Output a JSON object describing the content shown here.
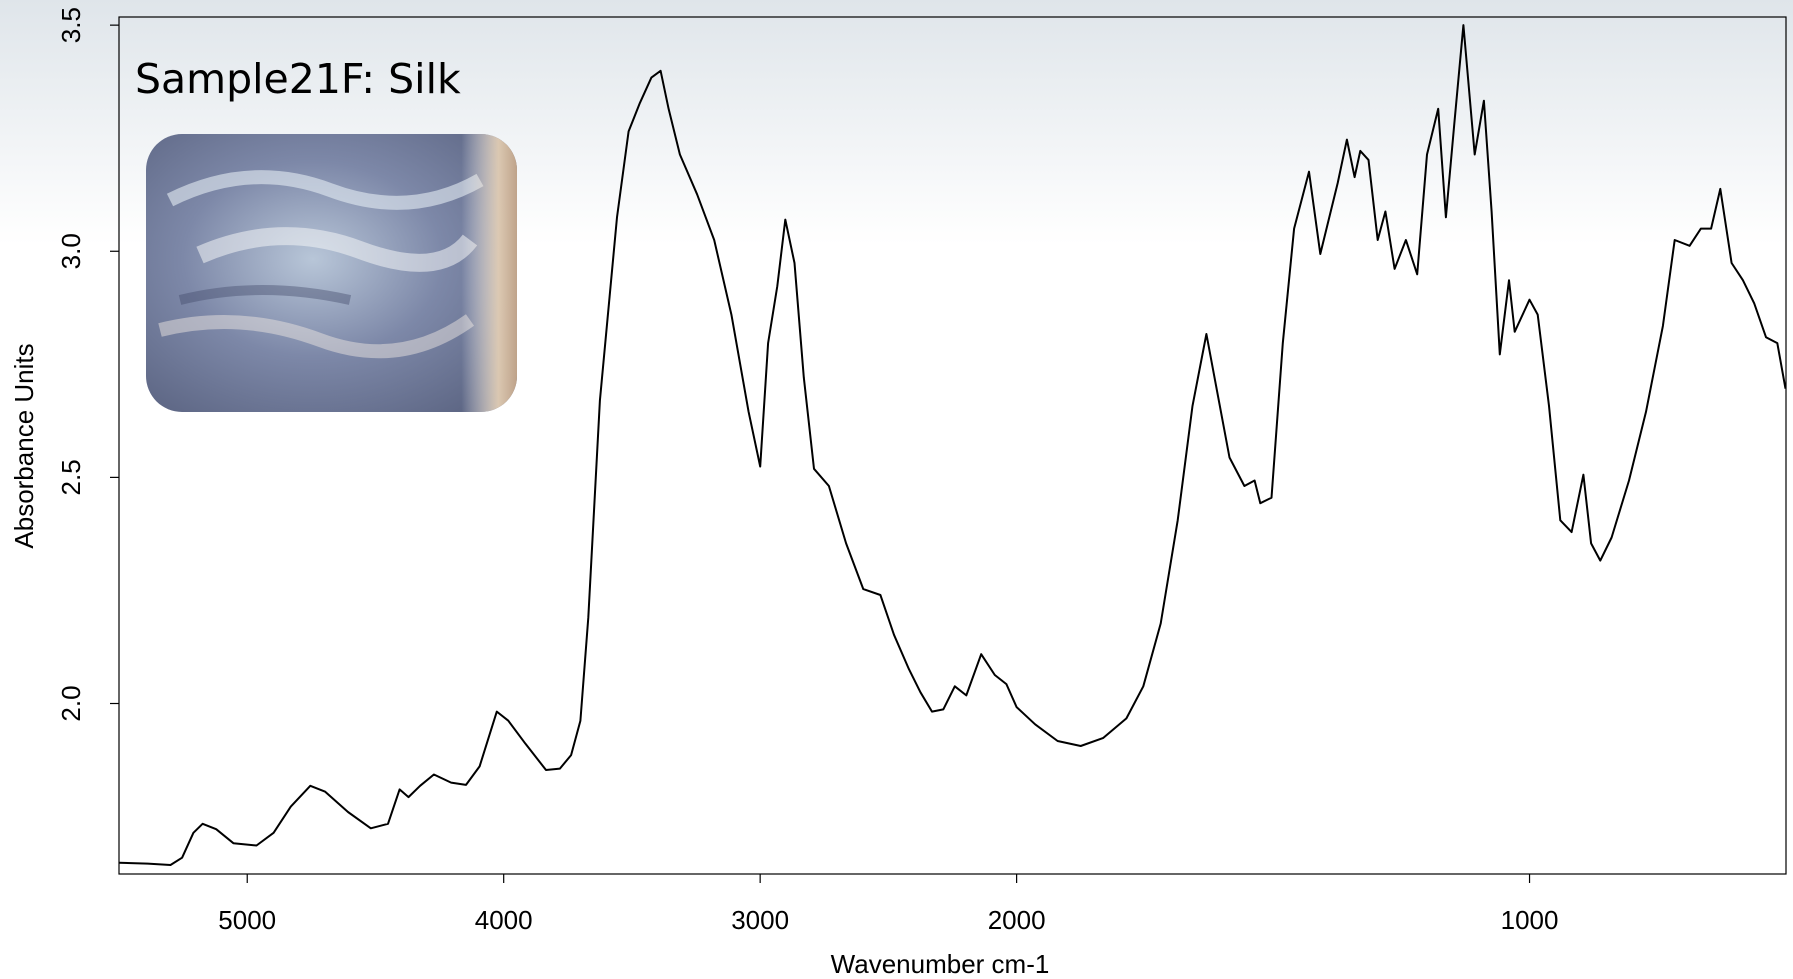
{
  "chart_data": {
    "type": "line",
    "title": "Sample21F: Silk",
    "xlabel": "Wavenumber cm-1",
    "ylabel": "Absorbance Units",
    "color": "#000000",
    "xlim": [
      5500,
      500
    ],
    "xscale_break": {
      "at": 2000,
      "factor": 2
    },
    "xticks": [
      5000,
      4000,
      3000,
      2000,
      1000
    ],
    "ylim": [
      1.623,
      3.518
    ],
    "yticks": [
      {
        "value": 2,
        "label": "2.0"
      },
      {
        "value": 2.5,
        "label": "2.5"
      },
      {
        "value": 3,
        "label": "3.0"
      },
      {
        "value": 3.5,
        "label": "3.5"
      }
    ],
    "x": [
      5500,
      5388,
      5299,
      5254,
      5210,
      5174,
      5121,
      5054,
      4964,
      4897,
      4830,
      4754,
      4696,
      4607,
      4518,
      4451,
      4406,
      4371,
      4326,
      4272,
      4205,
      4147,
      4094,
      4027,
      3982,
      3915,
      3835,
      3781,
      3737,
      3701,
      3670,
      3625,
      3558,
      3513,
      3469,
      3424,
      3388,
      3357,
      3313,
      3246,
      3179,
      3112,
      3045,
      3000,
      2969,
      2933,
      2902,
      2866,
      2830,
      2790,
      2732,
      2665,
      2598,
      2531,
      2478,
      2420,
      2375,
      2330,
      2286,
      2241,
      2196,
      2138,
      2085,
      2040,
      2000,
      1964,
      1920,
      1875,
      1831,
      1786,
      1753,
      1719,
      1686,
      1657,
      1630,
      1612,
      1585,
      1556,
      1536,
      1525,
      1503,
      1481,
      1459,
      1430,
      1408,
      1374,
      1356,
      1341,
      1330,
      1314,
      1296,
      1281,
      1263,
      1241,
      1219,
      1200,
      1178,
      1163,
      1147,
      1129,
      1107,
      1089,
      1074,
      1058,
      1040,
      1029,
      1000,
      984,
      962,
      940,
      918,
      895,
      880,
      862,
      840,
      806,
      773,
      740,
      717,
      688,
      666,
      646,
      628,
      606,
      584,
      562,
      539,
      517,
      501
    ],
    "values": [
      1.648,
      1.646,
      1.643,
      1.659,
      1.714,
      1.734,
      1.722,
      1.691,
      1.686,
      1.714,
      1.772,
      1.818,
      1.805,
      1.76,
      1.724,
      1.734,
      1.81,
      1.793,
      1.818,
      1.843,
      1.825,
      1.82,
      1.861,
      1.982,
      1.962,
      1.911,
      1.853,
      1.856,
      1.886,
      1.962,
      2.19,
      2.67,
      3.075,
      3.265,
      3.328,
      3.384,
      3.399,
      3.315,
      3.214,
      3.126,
      3.025,
      2.86,
      2.645,
      2.524,
      2.797,
      2.923,
      3.07,
      2.974,
      2.721,
      2.519,
      2.481,
      2.354,
      2.253,
      2.24,
      2.152,
      2.076,
      2.025,
      1.982,
      1.987,
      2.038,
      2.018,
      2.109,
      2.063,
      2.043,
      1.992,
      1.954,
      1.917,
      1.906,
      1.924,
      1.967,
      2.038,
      2.177,
      2.405,
      2.658,
      2.817,
      2.708,
      2.544,
      2.481,
      2.493,
      2.443,
      2.455,
      2.797,
      3.05,
      3.176,
      2.994,
      3.151,
      3.247,
      3.164,
      3.222,
      3.202,
      3.025,
      3.088,
      2.961,
      3.025,
      2.949,
      3.214,
      3.315,
      3.075,
      3.277,
      3.5,
      3.214,
      3.333,
      3.088,
      2.772,
      2.936,
      2.822,
      2.893,
      2.86,
      2.658,
      2.405,
      2.379,
      2.506,
      2.354,
      2.316,
      2.367,
      2.493,
      2.645,
      2.835,
      3.025,
      3.012,
      3.05,
      3.05,
      3.138,
      2.974,
      2.936,
      2.885,
      2.81,
      2.797,
      2.696
    ]
  }
}
